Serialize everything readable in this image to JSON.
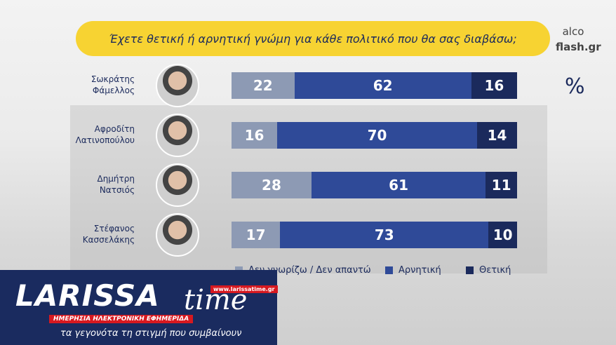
{
  "chart_data": {
    "type": "stacked-bar",
    "title": "Έχετε θετική ή αρνητική γνώμη για κάθε πολιτικό που θα σας διαβάσω;",
    "source": [
      "alco",
      "flash.gr"
    ],
    "unit": "%",
    "categories": [
      "Σωκράτης Φάμελλος",
      "Αφροδίτη Λατινοπούλου",
      "Δημήτρη Νατσιός",
      "Στέφανος Κασσελάκης"
    ],
    "series": [
      {
        "name": "Δεν γνωρίζω / Δεν απαντώ",
        "color": "#8d9ab4",
        "values": [
          22,
          16,
          28,
          17
        ]
      },
      {
        "name": "Αρνητική",
        "color": "#2f4a98",
        "values": [
          62,
          70,
          61,
          73
        ]
      },
      {
        "name": "Θετική",
        "color": "#1b2a5c",
        "values": [
          16,
          14,
          11,
          10
        ]
      }
    ]
  },
  "logo": {
    "brand": "LARISSA",
    "brand2": "time",
    "url": "www.larissatime.gr",
    "tagline": "ΗΜΕΡΗΣΙΑ ΗΛΕΚΤΡΟΝΙΚΗ ΕΦΗΜΕΡΙΔΑ",
    "slogan": "τα γεγονότα τη στιγμή που συμβαίνουν"
  }
}
